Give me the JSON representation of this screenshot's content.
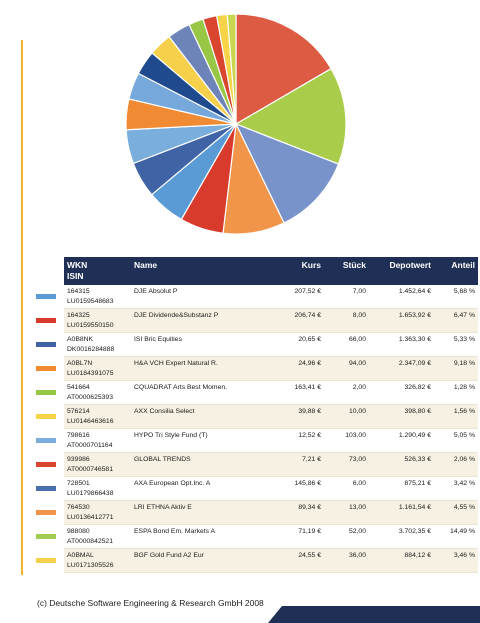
{
  "colors": {
    "accent_rule": "#f0b429",
    "header_bg": "#1f2f55",
    "row_alt": "#f6f1e2",
    "footer_bar": "#1f2f55"
  },
  "table": {
    "headers": {
      "wkn": "WKN",
      "isin": "ISIN",
      "name": "Name",
      "kurs": "Kurs",
      "stueck": "Stück",
      "depotwert": "Depotwert",
      "anteil": "Anteil"
    },
    "rows": [
      {
        "wkn": "164315",
        "isin": "LU0159548683",
        "name": "DJE Absolut P",
        "kurs": "207,52 €",
        "stueck": "7,00",
        "depotwert": "1.452,64 €",
        "anteil": "5,68 %",
        "color": "#5b9bd5"
      },
      {
        "wkn": "164325",
        "isin": "LU0159550150",
        "name": "DJE Dividende&Substanz P",
        "kurs": "206,74 €",
        "stueck": "8,00",
        "depotwert": "1.653,92 €",
        "anteil": "6,47 %",
        "color": "#d83a2b"
      },
      {
        "wkn": "A0B8NK",
        "isin": "DK0016284888",
        "name": "ISI Bric Equities",
        "kurs": "20,65 €",
        "stueck": "66,00",
        "depotwert": "1.363,30 €",
        "anteil": "5,33 %",
        "color": "#3f63a5"
      },
      {
        "wkn": "A0BL7N",
        "isin": "LU0184391075",
        "name": "H&A VCH Expert Natural R.",
        "kurs": "24,96 €",
        "stueck": "94,00",
        "depotwert": "2.347,09 €",
        "anteil": "9,18 %",
        "color": "#f08a33"
      },
      {
        "wkn": "541664",
        "isin": "AT0000625393",
        "name": "CQUADRAT Arts Best Momen.",
        "kurs": "163,41 €",
        "stueck": "2,00",
        "depotwert": "326,82 €",
        "anteil": "1,28 %",
        "color": "#98c745"
      },
      {
        "wkn": "576214",
        "isin": "LU0146463616",
        "name": "AXX Consilia Select",
        "kurs": "39,88 €",
        "stueck": "10,00",
        "depotwert": "398,80 €",
        "anteil": "1,56 %",
        "color": "#f7d447"
      },
      {
        "wkn": "798616",
        "isin": "AT0000701164",
        "name": "HYPO Tri Style Fund (T)",
        "kurs": "12,52 €",
        "stueck": "103,00",
        "depotwert": "1.290,49 €",
        "anteil": "5,05 %",
        "color": "#7aaedc"
      },
      {
        "wkn": "939986",
        "isin": "AT0000746581",
        "name": "GLOBAL TRENDS",
        "kurs": "7,21 €",
        "stueck": "73,00",
        "depotwert": "526,33 €",
        "anteil": "2,06 %",
        "color": "#d9452f"
      },
      {
        "wkn": "728501",
        "isin": "LU0179866438",
        "name": "AXA European Opt.Inc. A",
        "kurs": "145,86 €",
        "stueck": "6,00",
        "depotwert": "875,21 €",
        "anteil": "3,42 %",
        "color": "#4a6fae"
      },
      {
        "wkn": "764530",
        "isin": "LU0136412771",
        "name": "LRI ETHNA Aktiv E",
        "kurs": "89,34 €",
        "stueck": "13,00",
        "depotwert": "1.161,54 €",
        "anteil": "4,55 %",
        "color": "#f0954a"
      },
      {
        "wkn": "988080",
        "isin": "AT0000842521",
        "name": "ESPA Bond Em. Markets A",
        "kurs": "71,19 €",
        "stueck": "52,00",
        "depotwert": "3.702,35 €",
        "anteil": "14,49 %",
        "color": "#a2cc52"
      },
      {
        "wkn": "A0BMAL",
        "isin": "LU0171305526",
        "name": "BGF Gold Fund A2 Eur",
        "kurs": "24,55 €",
        "stueck": "36,00",
        "depotwert": "884,12 €",
        "anteil": "3,46 %",
        "color": "#f6d04a"
      }
    ]
  },
  "chart_data": {
    "type": "pie",
    "slices": [
      {
        "value": 16.8,
        "color": "#dd5b43"
      },
      {
        "value": 14.49,
        "color": "#a9cd4a"
      },
      {
        "value": 12.0,
        "color": "#7793c9"
      },
      {
        "value": 9.18,
        "color": "#f0954a"
      },
      {
        "value": 6.47,
        "color": "#d83a2b"
      },
      {
        "value": 5.68,
        "color": "#5b9bd5"
      },
      {
        "value": 5.33,
        "color": "#3f63a5"
      },
      {
        "value": 5.05,
        "color": "#7aaedc"
      },
      {
        "value": 4.55,
        "color": "#f08a33"
      },
      {
        "value": 4.0,
        "color": "#77a8dc"
      },
      {
        "value": 3.6,
        "color": "#1f4a8e"
      },
      {
        "value": 3.46,
        "color": "#f6d04a"
      },
      {
        "value": 3.42,
        "color": "#6c84b8"
      },
      {
        "value": 2.2,
        "color": "#98c745"
      },
      {
        "value": 2.06,
        "color": "#d9452f"
      },
      {
        "value": 1.56,
        "color": "#f7d447"
      },
      {
        "value": 1.28,
        "color": "#c9d750"
      }
    ]
  },
  "footer": {
    "copyright": "(c) Deutsche Software Engineering & Research GmbH 2008"
  }
}
